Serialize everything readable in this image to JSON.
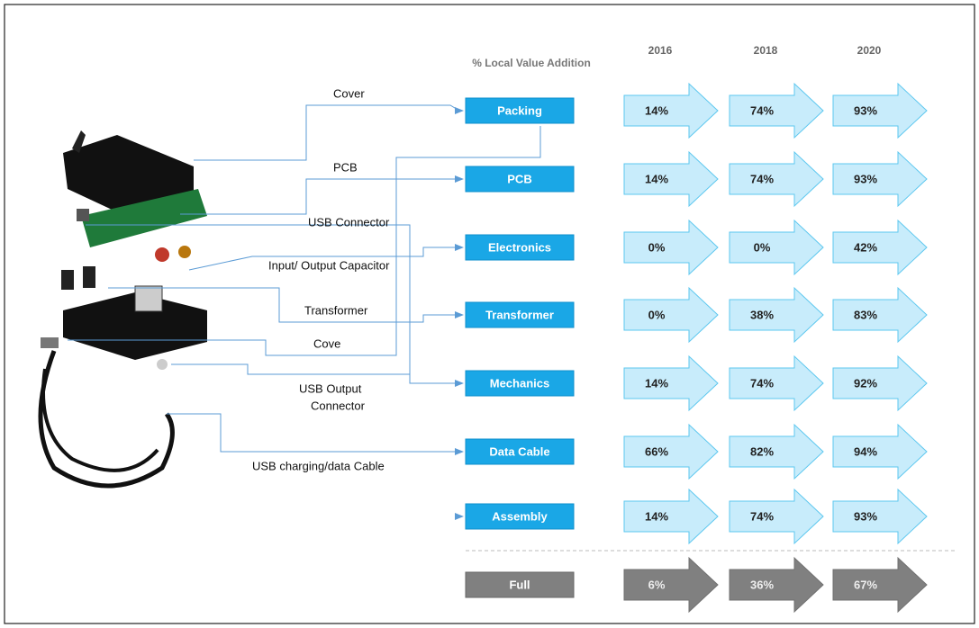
{
  "header": "% Local Value Addition",
  "years": [
    "2016",
    "2018",
    "2020"
  ],
  "rows": [
    {
      "label": "Packing",
      "values": [
        "14%",
        "74%",
        "93%"
      ]
    },
    {
      "label": "PCB",
      "values": [
        "14%",
        "74%",
        "93%"
      ]
    },
    {
      "label": "Electronics",
      "values": [
        "0%",
        "0%",
        "42%"
      ]
    },
    {
      "label": "Transformer",
      "values": [
        "0%",
        "38%",
        "83%"
      ]
    },
    {
      "label": "Mechanics",
      "values": [
        "14%",
        "74%",
        "92%"
      ]
    },
    {
      "label": "Data Cable",
      "values": [
        "66%",
        "82%",
        "94%"
      ]
    },
    {
      "label": "Assembly",
      "values": [
        "14%",
        "74%",
        "93%"
      ]
    }
  ],
  "total": {
    "label": "Full",
    "values": [
      "6%",
      "36%",
      "67%"
    ]
  },
  "components": [
    "Cover",
    "PCB",
    "USB Connector",
    "Input/ Output Capacitor",
    "Transformer",
    "Cove",
    "USB Output",
    "Connector",
    "USB charging/data Cable"
  ]
}
